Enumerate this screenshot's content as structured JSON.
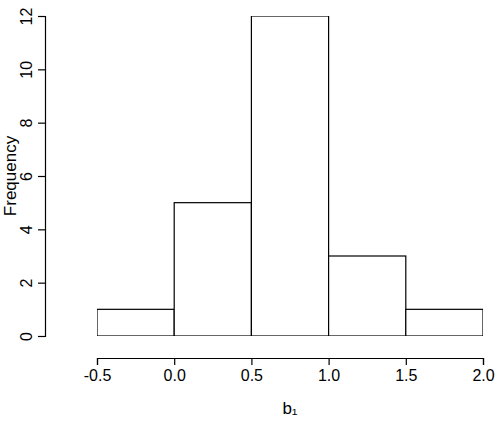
{
  "chart_data": {
    "type": "histogram",
    "x_label": "b₁",
    "y_label": "Frequency",
    "bins": [
      -0.5,
      0,
      0.5,
      1,
      1.5,
      2
    ],
    "values": [
      1,
      5,
      12,
      3,
      1
    ],
    "color": "#ffffff",
    "xlim": [
      -0.5,
      2
    ],
    "xticks": [
      -0.5,
      {
        "value": 0,
        "label": "0.0"
      },
      0.5,
      {
        "value": 1,
        "label": "1.0"
      },
      1.5,
      {
        "value": 2,
        "label": "2.0"
      }
    ],
    "ylim": [
      0,
      12
    ],
    "yticks": [
      0,
      2,
      4,
      6,
      8,
      10,
      12
    ],
    "grid": false
  }
}
